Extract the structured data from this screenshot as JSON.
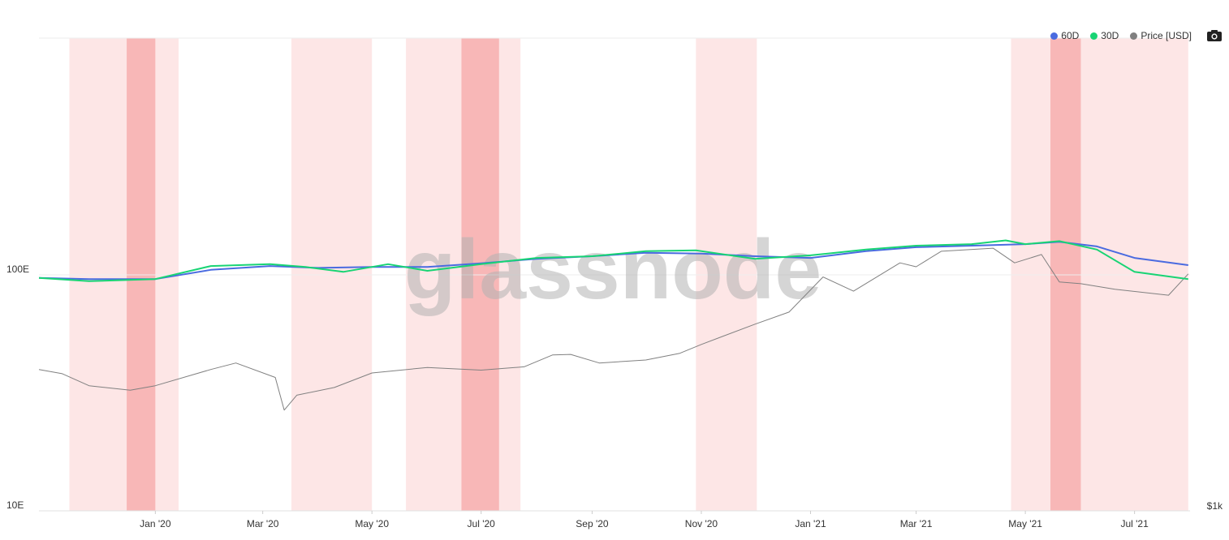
{
  "legend": {
    "items": [
      {
        "label": "60D",
        "color": "#4a6be0"
      },
      {
        "label": "30D",
        "color": "#18d474"
      },
      {
        "label": "Price [USD]",
        "color": "#808080"
      }
    ]
  },
  "watermark": "glassnode",
  "chart_data": {
    "type": "line",
    "x_ticks": [
      "Jan '20",
      "Mar '20",
      "May '20",
      "Jul '20",
      "Sep '20",
      "Nov '20",
      "Jan '21",
      "Mar '21",
      "May '21",
      "Jul '21"
    ],
    "x_range": [
      "2019-10-28",
      "2021-08-01"
    ],
    "y_left": {
      "scale": "log",
      "ticks": [
        "10E",
        "100E"
      ],
      "range": [
        10,
        150
      ]
    },
    "y_right": {
      "scale": "log",
      "ticks": [
        "$1k"
      ]
    },
    "shaded_regions": [
      {
        "start": "2019-11-14",
        "end": "2020-01-14",
        "intensity": "light"
      },
      {
        "start": "2019-12-16",
        "end": "2020-01-01",
        "intensity": "dark"
      },
      {
        "start": "2020-03-17",
        "end": "2020-05-01",
        "intensity": "light"
      },
      {
        "start": "2020-05-20",
        "end": "2020-07-23",
        "intensity": "light"
      },
      {
        "start": "2020-06-20",
        "end": "2020-07-11",
        "intensity": "dark"
      },
      {
        "start": "2020-10-29",
        "end": "2020-12-02",
        "intensity": "light"
      },
      {
        "start": "2021-04-23",
        "end": "2021-07-31",
        "intensity": "light"
      },
      {
        "start": "2021-05-15",
        "end": "2021-06-01",
        "intensity": "dark"
      }
    ],
    "series": [
      {
        "name": "60D",
        "color": "#4a6be0",
        "axis": "left",
        "points": [
          [
            "2019-10-28",
            97
          ],
          [
            "2019-11-25",
            96
          ],
          [
            "2020-01-01",
            96
          ],
          [
            "2020-02-01",
            105
          ],
          [
            "2020-03-05",
            109
          ],
          [
            "2020-04-01",
            107
          ],
          [
            "2020-05-01",
            108
          ],
          [
            "2020-06-01",
            108
          ],
          [
            "2020-07-01",
            112
          ],
          [
            "2020-08-01",
            117
          ],
          [
            "2020-09-01",
            120
          ],
          [
            "2020-10-01",
            124
          ],
          [
            "2020-11-01",
            123
          ],
          [
            "2020-12-01",
            120
          ],
          [
            "2021-01-01",
            118
          ],
          [
            "2021-02-01",
            126
          ],
          [
            "2021-03-01",
            131
          ],
          [
            "2021-04-01",
            133
          ],
          [
            "2021-05-01",
            135
          ],
          [
            "2021-05-20",
            138
          ],
          [
            "2021-06-10",
            132
          ],
          [
            "2021-07-01",
            118
          ],
          [
            "2021-07-31",
            110
          ]
        ]
      },
      {
        "name": "30D",
        "color": "#18d474",
        "axis": "left",
        "points": [
          [
            "2019-10-28",
            97
          ],
          [
            "2019-11-25",
            94
          ],
          [
            "2020-01-01",
            96
          ],
          [
            "2020-02-01",
            109
          ],
          [
            "2020-03-05",
            111
          ],
          [
            "2020-03-25",
            108
          ],
          [
            "2020-04-15",
            103
          ],
          [
            "2020-05-10",
            111
          ],
          [
            "2020-06-01",
            104
          ],
          [
            "2020-07-01",
            111
          ],
          [
            "2020-08-01",
            118
          ],
          [
            "2020-09-01",
            120
          ],
          [
            "2020-10-01",
            126
          ],
          [
            "2020-10-29",
            127
          ],
          [
            "2020-12-01",
            117
          ],
          [
            "2021-01-01",
            121
          ],
          [
            "2021-02-01",
            128
          ],
          [
            "2021-03-01",
            133
          ],
          [
            "2021-04-01",
            135
          ],
          [
            "2021-04-20",
            140
          ],
          [
            "2021-05-01",
            135
          ],
          [
            "2021-05-20",
            139
          ],
          [
            "2021-06-10",
            128
          ],
          [
            "2021-07-01",
            103
          ],
          [
            "2021-07-31",
            96
          ]
        ]
      },
      {
        "name": "Price [USD]",
        "color": "#808080",
        "axis": "right",
        "points": [
          [
            "2019-10-28",
            9300
          ],
          [
            "2019-11-10",
            8700
          ],
          [
            "2019-11-25",
            7200
          ],
          [
            "2019-12-18",
            6700
          ],
          [
            "2020-01-01",
            7200
          ],
          [
            "2020-02-01",
            9300
          ],
          [
            "2020-02-15",
            10300
          ],
          [
            "2020-03-08",
            8200
          ],
          [
            "2020-03-13",
            4900
          ],
          [
            "2020-03-20",
            6200
          ],
          [
            "2020-04-10",
            7000
          ],
          [
            "2020-05-01",
            8800
          ],
          [
            "2020-06-01",
            9600
          ],
          [
            "2020-07-01",
            9200
          ],
          [
            "2020-07-25",
            9700
          ],
          [
            "2020-08-10",
            11700
          ],
          [
            "2020-08-20",
            11800
          ],
          [
            "2020-09-05",
            10300
          ],
          [
            "2020-10-01",
            10800
          ],
          [
            "2020-10-20",
            12000
          ],
          [
            "2020-11-01",
            13800
          ],
          [
            "2020-12-01",
            19000
          ],
          [
            "2020-12-20",
            23000
          ],
          [
            "2021-01-08",
            40000
          ],
          [
            "2021-01-25",
            32000
          ],
          [
            "2021-02-20",
            50000
          ],
          [
            "2021-03-01",
            47000
          ],
          [
            "2021-03-15",
            60000
          ],
          [
            "2021-04-13",
            63000
          ],
          [
            "2021-04-25",
            50000
          ],
          [
            "2021-05-10",
            57000
          ],
          [
            "2021-05-20",
            37000
          ],
          [
            "2021-06-01",
            36000
          ],
          [
            "2021-06-20",
            33000
          ],
          [
            "2021-07-20",
            30000
          ],
          [
            "2021-07-31",
            42000
          ]
        ]
      }
    ]
  }
}
